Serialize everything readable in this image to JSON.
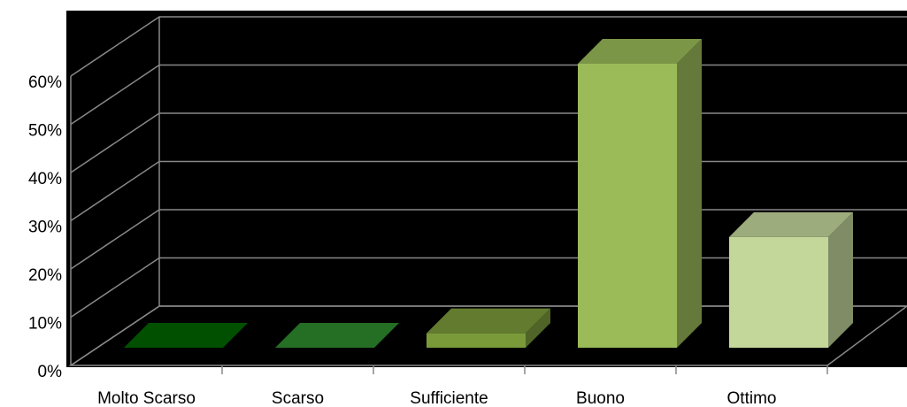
{
  "chart_data": {
    "type": "bar3d",
    "categories": [
      "Molto Scarso",
      "Scarso",
      "Sufficiente",
      "Buono",
      "Ottimo"
    ],
    "values": [
      0,
      0,
      3,
      59,
      23
    ],
    "colors": [
      "#006400",
      "#2e8b2e",
      "#7a9a3a",
      "#9bbb59",
      "#c4d79b"
    ],
    "ylim": [
      0,
      60
    ],
    "yticks": [
      {
        "value": 0,
        "label": "0%"
      },
      {
        "value": 10,
        "label": "10%"
      },
      {
        "value": 20,
        "label": "20%"
      },
      {
        "value": 30,
        "label": "30%"
      },
      {
        "value": 40,
        "label": "40%"
      },
      {
        "value": 50,
        "label": "50%"
      },
      {
        "value": 60,
        "label": "60%"
      }
    ],
    "grid": true
  }
}
